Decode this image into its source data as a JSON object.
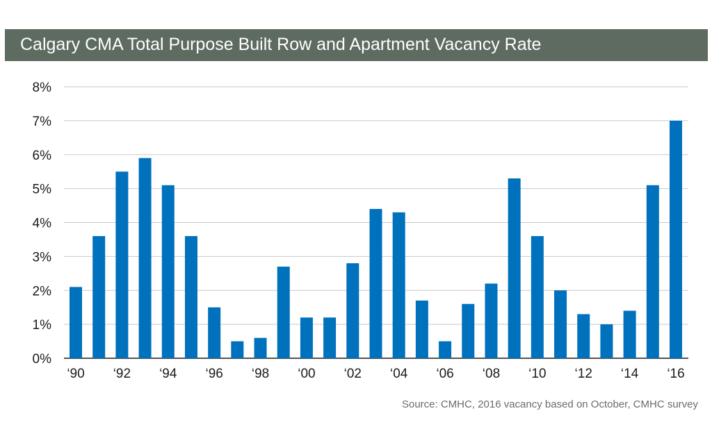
{
  "header": {
    "title": "Calgary CMA Total Purpose Built Row and Apartment Vacancy Rate"
  },
  "footer": {
    "source": "Source: CMHC, 2016 vacancy based on October, CMHC survey"
  },
  "colors": {
    "bar": "#0071bc",
    "title_bg": "#5e6b60",
    "grid": "#c8c8c8"
  },
  "chart_data": {
    "type": "bar",
    "title": "Calgary CMA Total Purpose Built Row and Apartment Vacancy Rate",
    "xlabel": "",
    "ylabel": "",
    "ylim": [
      0,
      8
    ],
    "y_ticks": [
      0,
      1,
      2,
      3,
      4,
      5,
      6,
      7,
      8
    ],
    "y_tick_labels": [
      "0%",
      "1%",
      "2%",
      "3%",
      "4%",
      "5%",
      "6%",
      "7%",
      "8%"
    ],
    "grid": true,
    "legend": "none",
    "categories": [
      "1990",
      "1991",
      "1992",
      "1993",
      "1994",
      "1995",
      "1996",
      "1997",
      "1998",
      "1999",
      "2000",
      "2001",
      "2002",
      "2003",
      "2004",
      "2005",
      "2006",
      "2007",
      "2008",
      "2009",
      "2010",
      "2011",
      "2012",
      "2013",
      "2014",
      "2015",
      "2016"
    ],
    "x_tick_labels": [
      "‘90",
      "",
      "‘92",
      "",
      "‘94",
      "",
      "‘96",
      "",
      "‘98",
      "",
      "‘00",
      "",
      "‘02",
      "",
      "‘04",
      "",
      "‘06",
      "",
      "‘08",
      "",
      "‘10",
      "",
      "‘12",
      "",
      "‘14",
      "",
      "‘16"
    ],
    "values": [
      2.1,
      3.6,
      5.5,
      5.9,
      5.1,
      3.6,
      1.5,
      0.5,
      0.6,
      2.7,
      1.2,
      1.2,
      2.8,
      4.4,
      4.3,
      1.7,
      0.5,
      1.6,
      2.2,
      5.3,
      3.6,
      2.0,
      1.3,
      1.0,
      1.4,
      5.1,
      7.0
    ]
  }
}
